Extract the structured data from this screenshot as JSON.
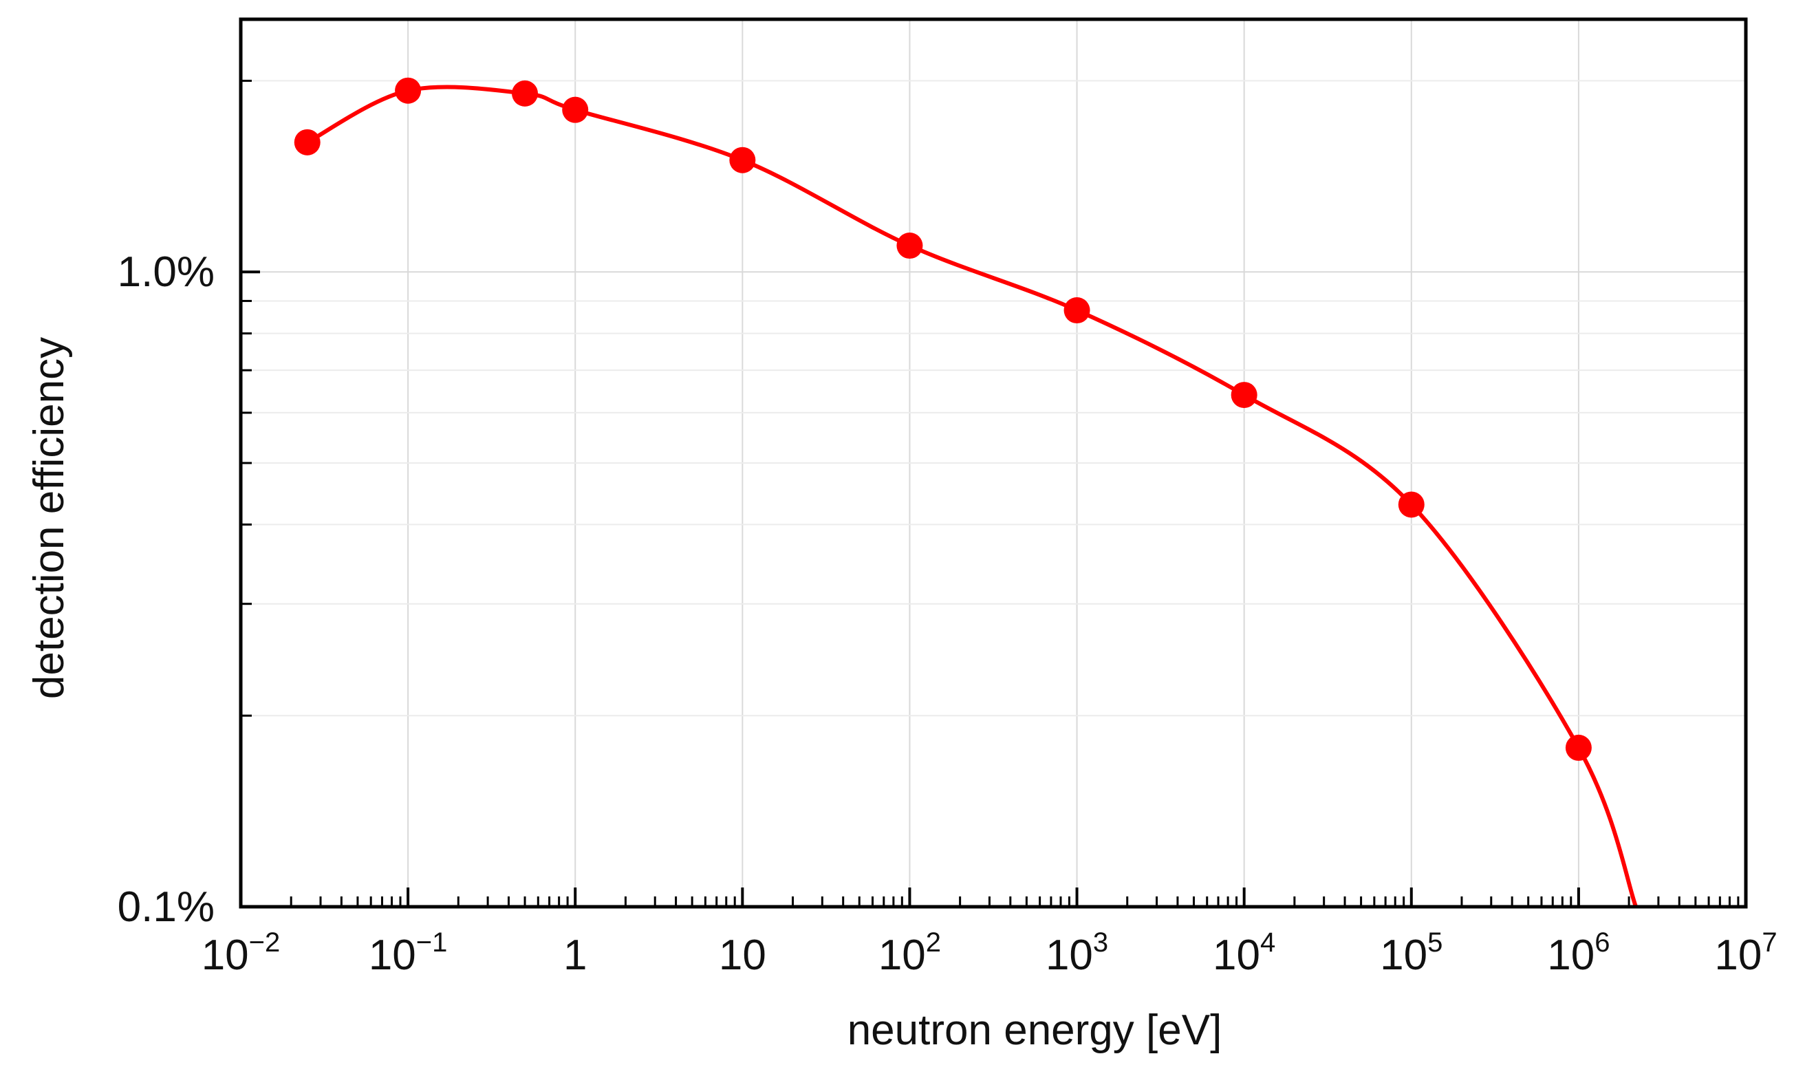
{
  "chart_data": {
    "type": "line",
    "title": "",
    "xlabel": "neutron energy [eV]",
    "ylabel": "detection efficiency",
    "xscale": "log",
    "yscale": "log",
    "xlim": [
      0.01,
      10000000
    ],
    "ylim": [
      0.1,
      2.5
    ],
    "grid": true,
    "legend": "none",
    "x_ticks": [
      {
        "base": "10",
        "exp": "−2"
      },
      {
        "base": "10",
        "exp": "−1"
      },
      {
        "base": "1",
        "exp": ""
      },
      {
        "base": "10",
        "exp": ""
      },
      {
        "base": "10",
        "exp": "2"
      },
      {
        "base": "10",
        "exp": "3"
      },
      {
        "base": "10",
        "exp": "4"
      },
      {
        "base": "10",
        "exp": "5"
      },
      {
        "base": "10",
        "exp": "6"
      },
      {
        "base": "10",
        "exp": "7"
      }
    ],
    "y_ticks": [
      {
        "label": "0.1%",
        "value": 0.1
      },
      {
        "label": "1.0%",
        "value": 1.0
      }
    ],
    "series": [
      {
        "name": "detection efficiency",
        "color": "#ff0000",
        "x": [
          0.025,
          0.1,
          0.5,
          1,
          10,
          100,
          1000,
          10000,
          100000,
          1000000
        ],
        "y": [
          1.6,
          1.93,
          1.91,
          1.8,
          1.5,
          1.1,
          0.87,
          0.64,
          0.43,
          0.178
        ]
      }
    ],
    "curve_tail": {
      "x": 2200000,
      "y": 0.1
    }
  }
}
